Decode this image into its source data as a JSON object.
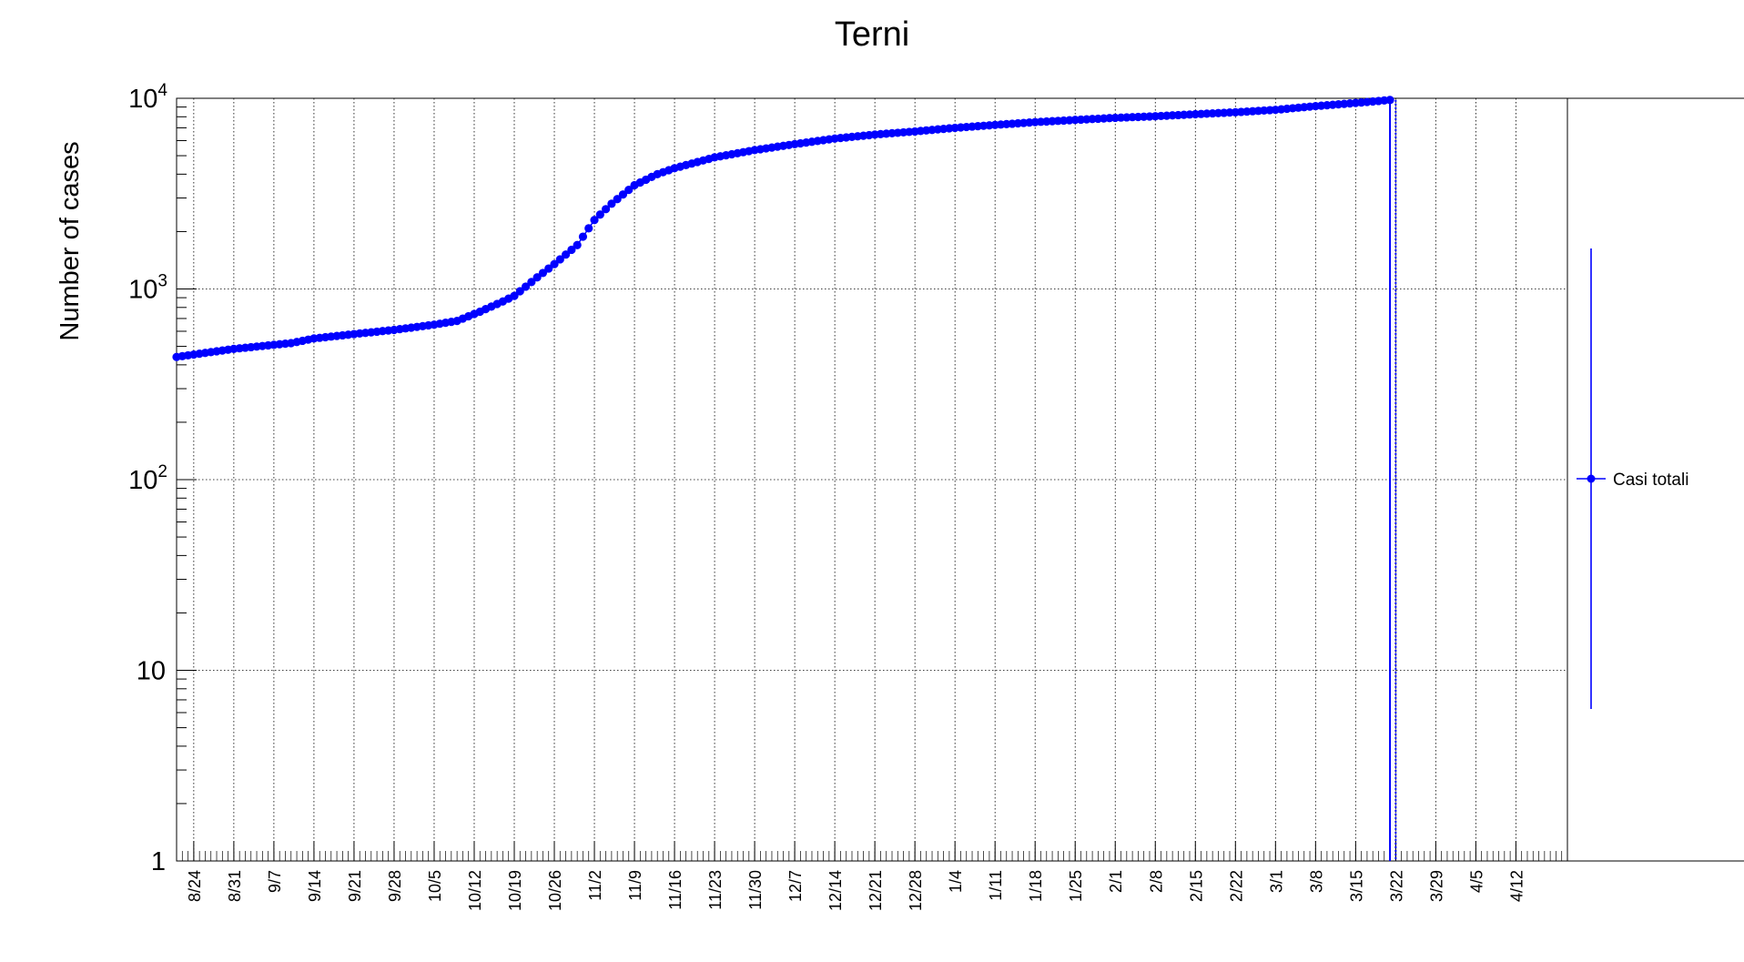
{
  "chart_data": {
    "type": "scatter",
    "title": "Terni",
    "xlabel": "",
    "ylabel": "Number of cases",
    "y_scale": "log",
    "ylim": [
      1,
      10000
    ],
    "xlim": [
      "2020-08-21",
      "2021-04-21"
    ],
    "grid": true,
    "legend_position": "right",
    "x_tick_labels": [
      "8/24",
      "8/31",
      "9/7",
      "9/14",
      "9/21",
      "9/28",
      "10/5",
      "10/12",
      "10/19",
      "10/26",
      "11/2",
      "11/9",
      "11/16",
      "11/23",
      "11/30",
      "12/7",
      "12/14",
      "12/21",
      "12/28",
      "1/4",
      "1/11",
      "1/18",
      "1/25",
      "2/1",
      "2/8",
      "2/15",
      "2/22",
      "3/1",
      "3/8",
      "3/15",
      "3/22",
      "3/29",
      "4/5",
      "4/12"
    ],
    "y_tick_labels": [
      {
        "base": "1",
        "exp": ""
      },
      {
        "base": "10",
        "exp": ""
      },
      {
        "base": "10",
        "exp": "2"
      },
      {
        "base": "10",
        "exp": "3"
      },
      {
        "base": "10",
        "exp": "4"
      }
    ],
    "colors": {
      "series": "#0000ff",
      "grid": "#000000",
      "axis": "#000000"
    },
    "series": [
      {
        "name": "Casi totali",
        "marker": "circle",
        "points": [
          [
            "2020-08-21",
            440
          ],
          [
            "2020-08-31",
            485
          ],
          [
            "2020-09-10",
            520
          ],
          [
            "2020-09-14",
            550
          ],
          [
            "2020-09-21",
            580
          ],
          [
            "2020-09-28",
            610
          ],
          [
            "2020-10-05",
            650
          ],
          [
            "2020-10-09",
            680
          ],
          [
            "2020-10-13",
            760
          ],
          [
            "2020-10-17",
            860
          ],
          [
            "2020-10-19",
            920
          ],
          [
            "2020-10-23",
            1150
          ],
          [
            "2020-10-26",
            1350
          ],
          [
            "2020-10-30",
            1700
          ],
          [
            "2020-11-02",
            2300
          ],
          [
            "2020-11-05",
            2800
          ],
          [
            "2020-11-09",
            3500
          ],
          [
            "2020-11-13",
            4000
          ],
          [
            "2020-11-16",
            4300
          ],
          [
            "2020-11-23",
            4900
          ],
          [
            "2020-11-30",
            5350
          ],
          [
            "2020-12-07",
            5750
          ],
          [
            "2020-12-14",
            6150
          ],
          [
            "2020-12-21",
            6450
          ],
          [
            "2020-12-28",
            6700
          ],
          [
            "2021-01-04",
            7000
          ],
          [
            "2021-01-11",
            7250
          ],
          [
            "2021-01-18",
            7500
          ],
          [
            "2021-01-25",
            7700
          ],
          [
            "2021-02-01",
            7900
          ],
          [
            "2021-02-08",
            8050
          ],
          [
            "2021-02-15",
            8250
          ],
          [
            "2021-02-22",
            8450
          ],
          [
            "2021-03-01",
            8700
          ],
          [
            "2021-03-08",
            9100
          ],
          [
            "2021-03-15",
            9450
          ],
          [
            "2021-03-21",
            9800
          ]
        ]
      }
    ]
  }
}
